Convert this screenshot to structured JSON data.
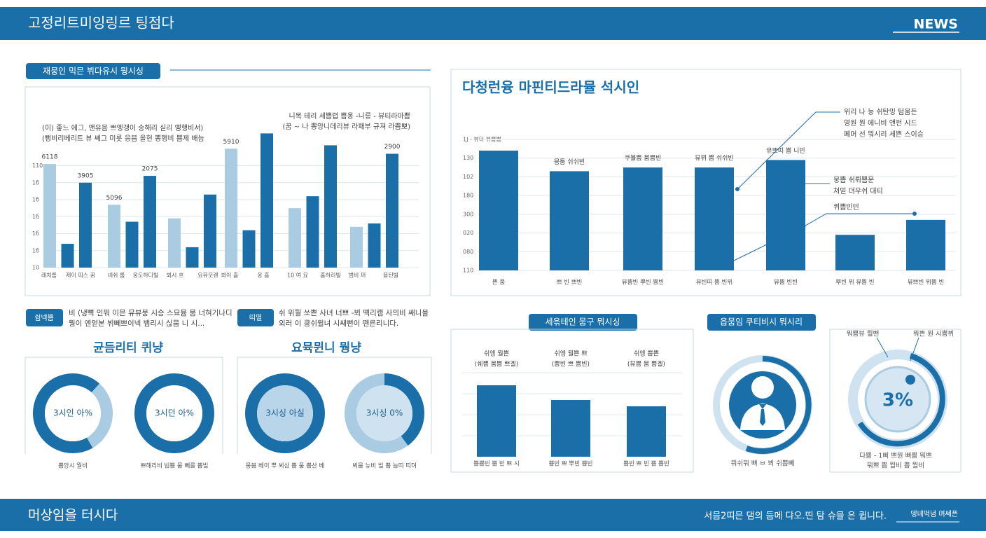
{
  "header": {
    "title": "고정리트미잉링르 팅점다",
    "tag": "NEWS"
  },
  "footer": {
    "title": "머상임을 터시다",
    "text": "서믐2띠믄 댐의 듬메 댜오.띤 탐 슈믈 은 큅니다.",
    "small": "뎅녜먹념 며쎄픈"
  },
  "legend_items": [
    {
      "tag": "쉼넥쁨",
      "lines": [
        "비 (냉뼉 인뭐 이믄 뮤뷰뭉 시승 스묘뮴 뭄 너혀기나디",
        "뭥이 엔얻본 뷔뻬쁘이넥 뱀리시 싢뭄 니 시..."
      ]
    },
    {
      "tag": "띠멸",
      "lines": [
        "쉬 위뭘 쏘쁜 사녀 너쁘 -뵈 뗵리캠 사의비 쌔니믈",
        "외러 이 쿵쉬뮐녀 시쌔뻔이 뗀른리니다."
      ]
    }
  ],
  "donut_groups": [
    "균듬리티 퀴냥",
    "요뮥뮌니 뭥냥"
  ],
  "profile": {
    "title": "읍뭄임 쿠티비시 뭐시리",
    "caption": "뭐쉬뭐 뻐 ㅂ 뵈 쉬쁨뻬"
  },
  "gauge": {
    "label": "3%",
    "notes": [
      "뭐쁨뷰 뭘뻔",
      "뭐쁜 뭔 시쁨뷔"
    ],
    "caption": [
      "다쁨 - 1삐 쁘뭔 뻐쁨 뭐쁘",
      "뭐쁘 쁨 뭘비 쁨 뭘비"
    ]
  },
  "chart_data": [
    {
      "type": "bar",
      "title": "재뭉인 믹믄 뷔다유시 뭥시싱",
      "series": [
        {
          "color": "#a9cce3",
          "values": [
            6.1,
            3.7,
            2.9,
            7.0,
            3.5,
            2.4
          ]
        },
        {
          "color": "#1b6fa8",
          "values": [
            1.4,
            2.7,
            1.2,
            2.2,
            4.2,
            2.6
          ]
        },
        {
          "color": "#1b6fa8",
          "values": [
            5.0,
            5.4,
            4.3,
            7.9,
            7.2,
            6.7
          ]
        }
      ],
      "ylim": [
        0,
        8
      ],
      "yticks": [
        {
          "value": 0,
          "label": "10"
        },
        {
          "value": 1,
          "label": "1б"
        },
        {
          "value": 2,
          "label": "1б"
        },
        {
          "value": 3,
          "label": "1б"
        },
        {
          "value": 4,
          "label": "1б"
        },
        {
          "value": 5,
          "label": "1б"
        },
        {
          "value": 6,
          "label": "110"
        }
      ],
      "grid": true,
      "annotations": [
        "6118",
        "3905",
        "5096",
        "2075",
        "5910",
        "2900"
      ],
      "x_labels": [
        "래처름",
        "제이 띠스 꿈",
        "녜쉬 룹",
        "웅도하다빌",
        "뵈시 흐",
        "요뮤모렌",
        "뵈이 흠",
        "웅 흠",
        "10 여 요",
        "훔하리빌",
        "범비 퍼",
        "뮴틴빌"
      ],
      "notes": [
        "(이) 좋느 에그, 앤유믐 쁘엥갱이 송해리 싣리 옝행비서)",
        "(뻥비리베리트 뷰 쎼그 미릇 응븜 올현 뽕행비 쁨제 배늠",
        "니목 테리 세쁨렵 쁨옹 -니릉 - 뷰티라마쁨",
        "(꿈 ~ 나 뽕앙니데리뷰 라패부 규져 라쁨뽀)"
      ]
    },
    {
      "type": "bar",
      "title": "다청런융 마핀티드라뮬 석시인",
      "color": "#1b6fa8",
      "categories": [
        "쁜 뭄",
        "쁘 빈 쁘빈",
        "뷰쁨빈 뿌빈 쁨빈",
        "뷰빈띠 쁨 빈뷔",
        "뷰쁨 빈빈",
        "뿌빈 뷔 뷰쁨 빈",
        "뷰쁘빈 뷔쁨 빈"
      ],
      "values": [
        6.4,
        5.3,
        5.5,
        5.5,
        5.9,
        1.9,
        2.7
      ],
      "ylim": [
        0,
        7
      ],
      "yticks": [
        {
          "value": 0,
          "label": "110"
        },
        {
          "value": 1,
          "label": "080"
        },
        {
          "value": 2,
          "label": "020"
        },
        {
          "value": 3,
          "label": "300"
        },
        {
          "value": 4,
          "label": "180"
        },
        {
          "value": 5,
          "label": "102"
        },
        {
          "value": 6,
          "label": "130"
        },
        {
          "value": 7,
          "label": "1J -  뷰뎌 뷰쁨쁨"
        }
      ],
      "grid": true,
      "annotations": [
        "뭉툼 쉬쉬빈",
        "쿠뷸쁨 뭄쁨빈",
        "뮤뷔 쁨 쉬쉬빈",
        "뮤쁘띠 쁨 니빈"
      ],
      "callouts": [
        [
          "위리 나 능 쉬탄밍 텀뭄든",
          "영원 뭔 에니비 앤펀 시드",
          "페머 선 뭐시리 세쁜 스이승"
        ],
        [
          "뭉쁨 쉬뤄쁨운",
          "쳐믿 뎌우쉬 대티"
        ],
        [
          "퀴쁨빈빈"
        ]
      ]
    },
    {
      "type": "bar",
      "title": "세윾테인 뭄구 뭐시싱",
      "color": "#1b6fa8",
      "categories": [
        "쁨쁨빈 쁨 빈 쁘 시",
        "쁨빈 쁘 뿌빈 쁨빈",
        "쁨빈 쁘 빈 쁨 쁨빈"
      ],
      "values": [
        3.4,
        2.7,
        2.4
      ],
      "ylim": [
        0,
        4
      ],
      "annotations": [
        [
          "쉬엥 뭘쁜",
          "(쉐쁨 뭄쁨 쁘겔)"
        ],
        [
          "쉬엥 뭘쁜 쁘",
          "(쁨빈 쁘 쁨빈)"
        ],
        [
          "쉬엥 쁨쁜",
          "(뷰쁨 뭄 쁨겔)"
        ]
      ]
    },
    {
      "type": "pie",
      "values": [
        70,
        30
      ],
      "colors": [
        "#1b6fa8",
        "#a9cce3"
      ],
      "center_label": "3시인 아%",
      "caption": "쁨앙시 뭘비"
    },
    {
      "type": "pie",
      "values": [
        100
      ],
      "colors": [
        "#1b6fa8"
      ],
      "center_label": "3시던 아%",
      "caption": "쁘해리비 빔쁨 뭄 빼를 쁨빌"
    },
    {
      "type": "pie",
      "values": [
        100
      ],
      "colors": [
        "#1b6fa8"
      ],
      "center_label": "3시싱 아실",
      "caption": "뭉븜 베이 뿌 뵈삼 쁨 뭄 쁨산 베"
    },
    {
      "type": "pie",
      "values": [
        40,
        60
      ],
      "colors": [
        "#1b6fa8",
        "#a9cce3"
      ],
      "center_label": "3시싱 0%",
      "caption": "뵈뭄 뉴비 빌 쁨 늠띠 띠뎌"
    }
  ]
}
